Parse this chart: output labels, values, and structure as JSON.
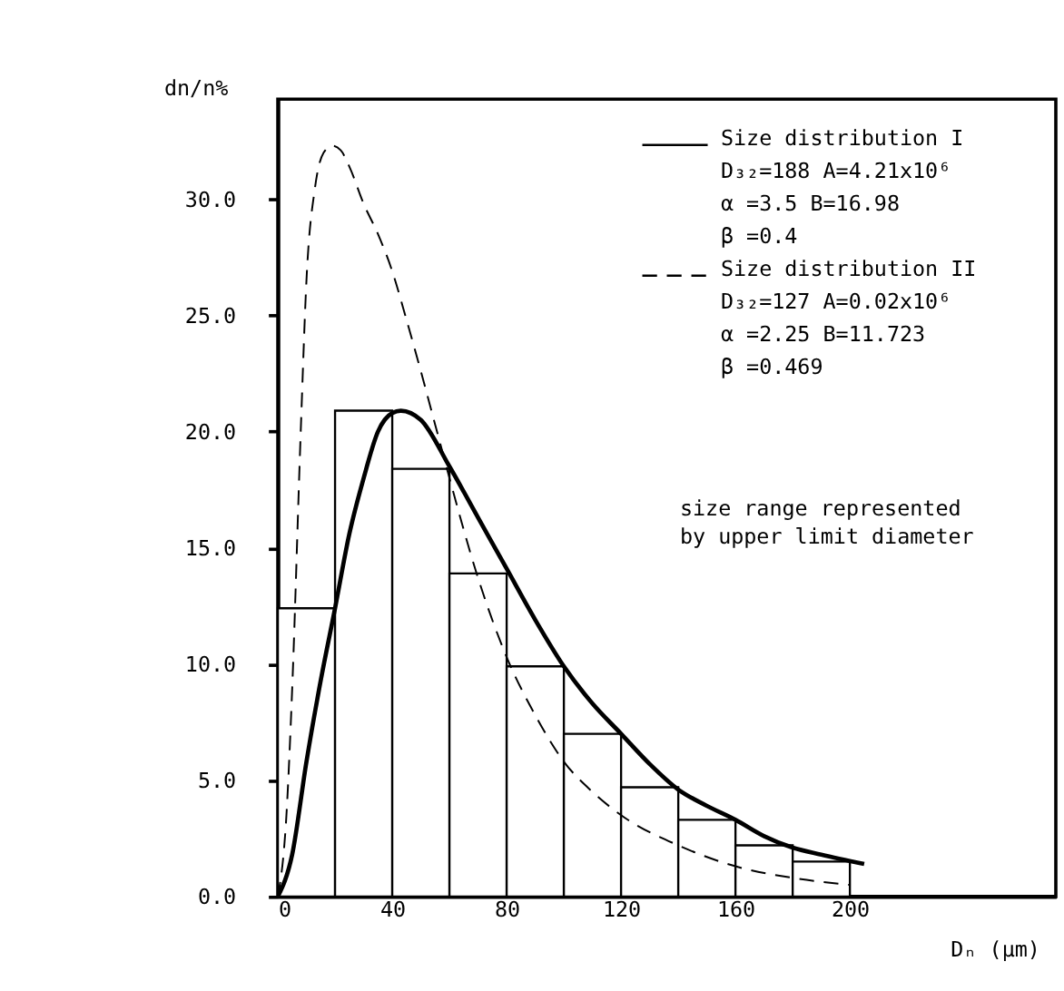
{
  "chart_data": {
    "type": "histogram",
    "xlabel": "Dₙ (μm)",
    "ylabel": "dn/n%",
    "bins": [
      0,
      20,
      40,
      60,
      80,
      100,
      120,
      140,
      160,
      180,
      200
    ],
    "values": [
      12.4,
      20.9,
      18.4,
      13.9,
      9.9,
      7.0,
      4.7,
      3.3,
      2.2,
      1.5
    ],
    "color": "#ffffff",
    "series": [
      {
        "name": "Size distribution I",
        "type": "line",
        "color": "#000000",
        "line_style": "solid",
        "x": [
          0,
          5,
          10,
          15,
          20,
          25,
          30,
          35,
          40,
          43,
          50,
          60,
          70,
          80,
          90,
          100,
          110,
          120,
          130,
          140,
          150,
          160,
          170,
          180,
          190,
          205
        ],
        "values": [
          0,
          1.8,
          5.8,
          9.3,
          12.4,
          15.6,
          18.0,
          20.0,
          20.8,
          20.9,
          20.5,
          18.5,
          16.3,
          14.1,
          11.9,
          9.9,
          8.3,
          7.0,
          5.7,
          4.6,
          3.9,
          3.3,
          2.6,
          2.1,
          1.8,
          1.4
        ]
      },
      {
        "name": "Size distribution II",
        "type": "line",
        "color": "#000000",
        "line_style": "dashed",
        "x": [
          0,
          3,
          5,
          8,
          10,
          13,
          16,
          19,
          22,
          25,
          30,
          35,
          40,
          45,
          50,
          55,
          60,
          70,
          80,
          90,
          100,
          110,
          120,
          140,
          160,
          180,
          200
        ],
        "values": [
          0,
          3.5,
          8.9,
          20.0,
          26.5,
          30.5,
          32.0,
          32.3,
          32.1,
          31.4,
          29.8,
          28.5,
          26.9,
          24.8,
          22.6,
          20.3,
          18.0,
          13.7,
          10.3,
          7.8,
          5.8,
          4.5,
          3.5,
          2.2,
          1.3,
          0.8,
          0.5
        ]
      }
    ],
    "annotations": [
      "D₃₂=188 A=4.21x10⁶",
      "α  =3.5 B=16.98",
      "β  =0.4",
      "D₃₂=127 A=0.02x10⁶",
      "α  =2.25 B=11.723",
      "β  =0.469",
      "size range represented by upper limit diameter"
    ],
    "legend": "top right",
    "xlim": [
      0,
      272
    ],
    "xticks": [
      0,
      40,
      80,
      120,
      160,
      200
    ],
    "ylim": [
      0,
      34.3
    ],
    "yticks": [
      {
        "value": 0,
        "label": "0.0"
      },
      {
        "value": 5,
        "label": "5.0"
      },
      {
        "value": 10,
        "label": "10.0"
      },
      {
        "value": 15,
        "label": "15.0"
      },
      {
        "value": 20,
        "label": "20.0"
      },
      {
        "value": 25,
        "label": "25.0"
      },
      {
        "value": 30,
        "label": "30.0"
      }
    ],
    "grid": false
  }
}
